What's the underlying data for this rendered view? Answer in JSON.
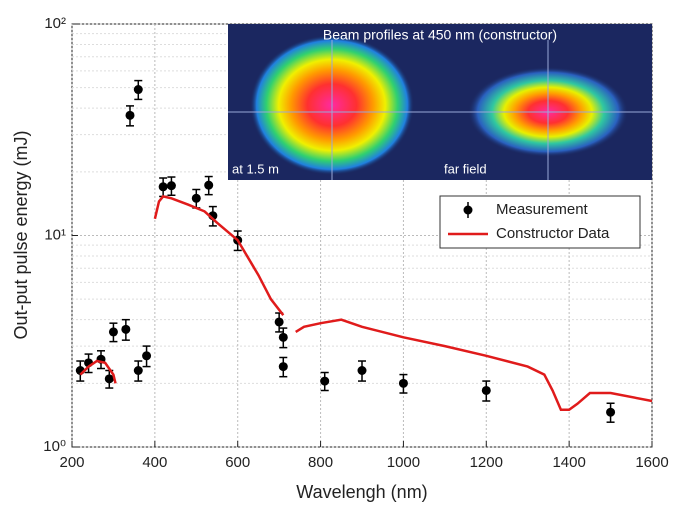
{
  "chart_data": {
    "type": "scatter",
    "xlabel": "Wavelengh (nm)",
    "ylabel": "Out-put pulse energy (mJ)",
    "xlim": [
      200,
      1600
    ],
    "xticks": [
      200,
      400,
      600,
      800,
      1000,
      1200,
      1400,
      1600
    ],
    "ylim": [
      1,
      100
    ],
    "yticks": [
      {
        "value": 1,
        "label": "10⁰"
      },
      {
        "value": 10,
        "label": "10¹"
      },
      {
        "value": 100,
        "label": "10²"
      }
    ],
    "log_y": true,
    "grid": true,
    "legend": "center right",
    "series": [
      {
        "name": "Measurement",
        "color": "#000000",
        "kind": "errorbar",
        "x": [
          220,
          240,
          270,
          290,
          300,
          330,
          340,
          360,
          360,
          380,
          420,
          440,
          500,
          530,
          540,
          600,
          700,
          710,
          710,
          810,
          900,
          1000,
          1200,
          1500
        ],
        "values": [
          2.3,
          2.5,
          2.6,
          2.1,
          3.5,
          3.6,
          37,
          49,
          2.3,
          2.7,
          17,
          17.2,
          15,
          17.3,
          12.4,
          9.5,
          3.9,
          3.3,
          2.4,
          2.05,
          2.3,
          2.0,
          1.85,
          1.46
        ],
        "errors": [
          0.25,
          0.25,
          0.25,
          0.2,
          0.35,
          0.4,
          4,
          5,
          0.25,
          0.3,
          1.7,
          1.7,
          1.5,
          1.7,
          1.3,
          1.0,
          0.4,
          0.35,
          0.25,
          0.2,
          0.25,
          0.2,
          0.2,
          0.15
        ]
      },
      {
        "name": "Constructor Data",
        "color": "#e01b1b",
        "kind": "line",
        "x": [
          220,
          240,
          260,
          280,
          300,
          305,
          310,
          400,
          410,
          420,
          440,
          480,
          520,
          550,
          600,
          650,
          680,
          710,
          725,
          740,
          760,
          800,
          850,
          900,
          1000,
          1100,
          1200,
          1300,
          1340,
          1360,
          1380,
          1400,
          1420,
          1450,
          1500,
          1600
        ],
        "values": [
          2.2,
          2.4,
          2.55,
          2.5,
          2.2,
          2.0,
          null,
          12,
          14.5,
          15.3,
          15,
          14,
          13,
          11.5,
          9.5,
          6.5,
          5,
          4.2,
          null,
          3.5,
          3.7,
          3.85,
          4.0,
          3.7,
          3.3,
          3.0,
          2.7,
          2.4,
          2.2,
          1.85,
          1.5,
          1.5,
          1.6,
          1.8,
          1.8,
          1.65
        ]
      }
    ],
    "inset": {
      "title": "Beam profiles at 450 nm (constructor)",
      "left_label": "at 1.5 m",
      "right_label": "far field"
    }
  }
}
